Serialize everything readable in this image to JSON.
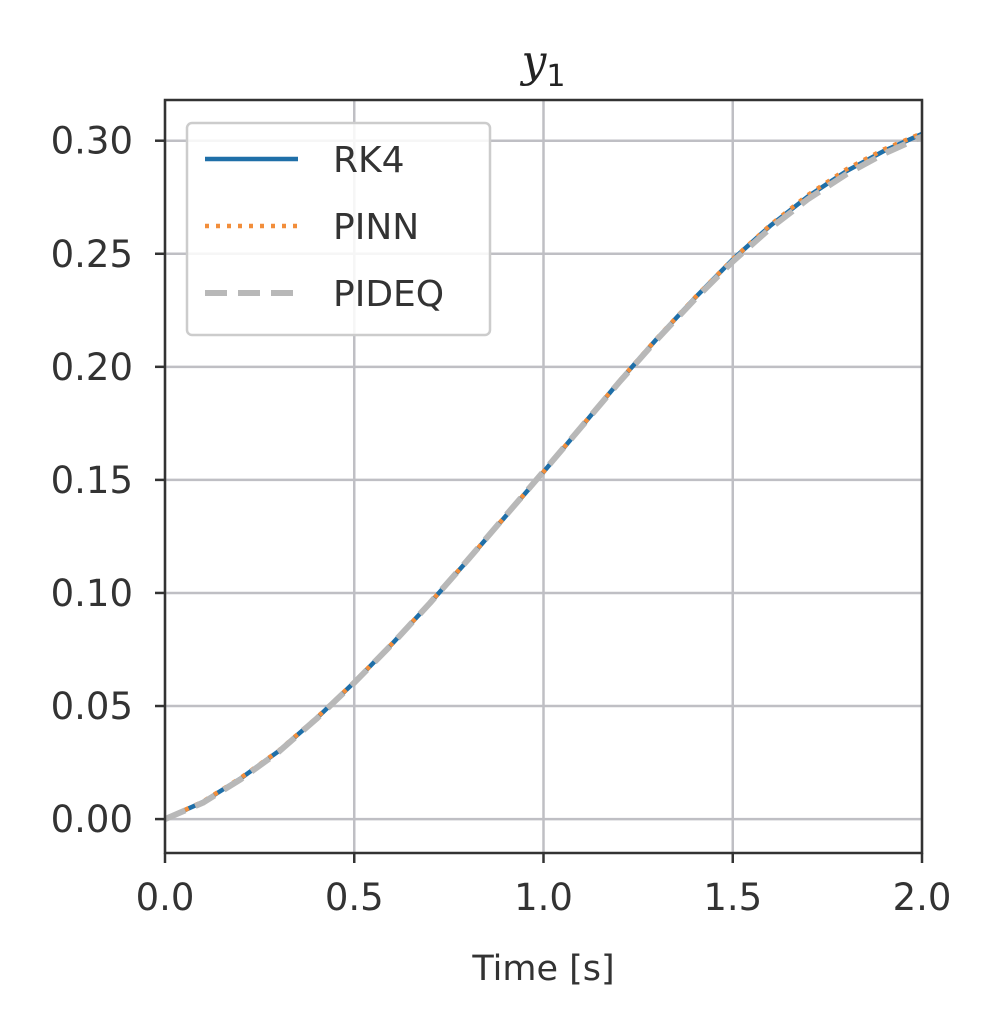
{
  "chart_data": {
    "type": "line",
    "title": "y",
    "title_subscript": "1",
    "xlabel": "Time [s]",
    "ylabel": "",
    "xlim": [
      0.0,
      2.0
    ],
    "ylim": [
      -0.015,
      0.318
    ],
    "x_ticks": [
      0.0,
      0.5,
      1.0,
      1.5,
      2.0
    ],
    "x_tick_labels": [
      "0.0",
      "0.5",
      "1.0",
      "1.5",
      "2.0"
    ],
    "y_ticks": [
      0.0,
      0.05,
      0.1,
      0.15,
      0.2,
      0.25,
      0.3
    ],
    "y_tick_labels": [
      "0.00",
      "0.05",
      "0.10",
      "0.15",
      "0.20",
      "0.25",
      "0.30"
    ],
    "grid": true,
    "legend_position": "top-left",
    "x": [
      0.0,
      0.1,
      0.2,
      0.3,
      0.4,
      0.5,
      0.6,
      0.7,
      0.8,
      0.9,
      1.0,
      1.1,
      1.2,
      1.3,
      1.4,
      1.5,
      1.6,
      1.7,
      1.8,
      1.9,
      2.0
    ],
    "series": [
      {
        "name": "RK4",
        "color": "#1f6fa8",
        "style": "solid",
        "values": [
          0.0,
          0.0075,
          0.018,
          0.03,
          0.0445,
          0.0605,
          0.0775,
          0.0955,
          0.1145,
          0.134,
          0.1535,
          0.1735,
          0.1935,
          0.2125,
          0.2305,
          0.2475,
          0.2625,
          0.2755,
          0.2865,
          0.2955,
          0.303
        ]
      },
      {
        "name": "PINN",
        "color": "#f28e3b",
        "style": "dotted",
        "values": [
          0.0,
          0.0077,
          0.0182,
          0.0302,
          0.0447,
          0.0606,
          0.0776,
          0.0956,
          0.1146,
          0.1341,
          0.1536,
          0.1736,
          0.1936,
          0.2126,
          0.2306,
          0.2476,
          0.2628,
          0.2761,
          0.2873,
          0.2962,
          0.3033
        ]
      },
      {
        "name": "PIDEQ",
        "color": "#b8b8b8",
        "style": "dashed",
        "values": [
          0.0,
          0.0072,
          0.0176,
          0.0297,
          0.0443,
          0.0603,
          0.0774,
          0.0955,
          0.1146,
          0.1342,
          0.1537,
          0.1735,
          0.1932,
          0.2121,
          0.2299,
          0.2466,
          0.2614,
          0.2743,
          0.2852,
          0.2943,
          0.3018
        ]
      }
    ]
  }
}
